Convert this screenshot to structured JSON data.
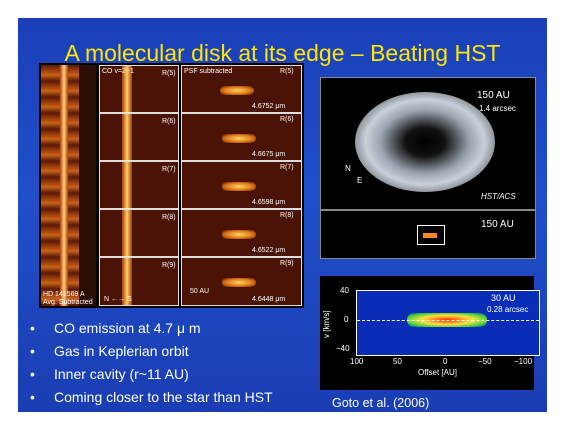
{
  "slide": {
    "title": "A molecular disk at its edge – Beating HST",
    "bullets": [
      {
        "text": "CO emission at 4.7 μ m"
      },
      {
        "text": "Gas in Keplerian orbit"
      },
      {
        "text": " Inner cavity (r~11 AU)"
      },
      {
        "text": "Coming closer to the star than HST"
      }
    ],
    "caption": "Goto et al. (2006)"
  },
  "spectra": {
    "col2_header": "CO v=2−1",
    "col3_header": "PSF subtracted",
    "rows": [
      {
        "line": "R(5)",
        "wave": "4.6752 μm"
      },
      {
        "line": "R(6)",
        "wave": "4.6675 μm"
      },
      {
        "line": "R(7)",
        "wave": "4.6598 μm"
      },
      {
        "line": "R(8)",
        "wave": "4.6522 μm"
      },
      {
        "line": "R(9)",
        "wave": "4.6448 μm"
      }
    ],
    "star_label": "HD 141569 A",
    "star_sub": "Avg. Subtracted",
    "scale": "50 AU",
    "orient": "N ←→ S"
  },
  "hst": {
    "scale": "150 AU",
    "arcsec": "1.4 arcsec",
    "instrument": "HST/ACS",
    "compass_n": "N",
    "compass_e": "E"
  },
  "zoom": {
    "scale": "150 AU"
  },
  "vplot": {
    "ylabel": "v [km/s]",
    "xlabel": "Offset [AU]",
    "yticks": [
      "40",
      "0",
      "−40"
    ],
    "xticks": [
      "100",
      "50",
      "0",
      "−50",
      "−100"
    ],
    "scale": "30 AU",
    "arcsec": "0.28 arcsec"
  }
}
